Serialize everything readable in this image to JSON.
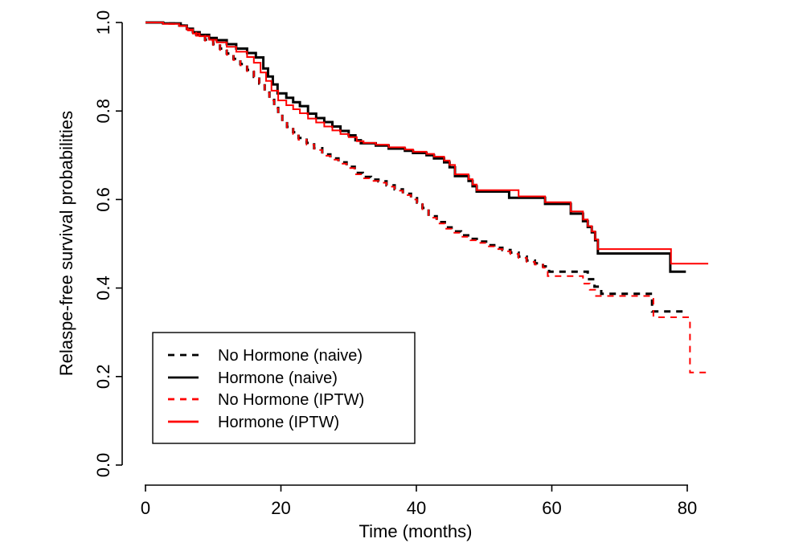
{
  "chart_data": {
    "type": "line",
    "subtype": "kaplan-meier-step",
    "title": "",
    "xlabel": "Time (months)",
    "ylabel": "Relaspe-free survival probabilities",
    "xlim": [
      0,
      84
    ],
    "ylim": [
      0.0,
      1.0
    ],
    "x_ticks": [
      "0",
      "20",
      "40",
      "60",
      "80"
    ],
    "x_tick_values": [
      0,
      20,
      40,
      60,
      80
    ],
    "y_ticks": [
      "0.0",
      "0.2",
      "0.4",
      "0.6",
      "0.8",
      "1.0"
    ],
    "y_tick_values": [
      0.0,
      0.2,
      0.4,
      0.6,
      0.8,
      1.0
    ],
    "grid": false,
    "legend_position": "bottom-left",
    "colors": {
      "naive": "#000000",
      "iptw": "#ff0000"
    },
    "series": [
      {
        "name": "No Hormone (naive)",
        "color": "#000000",
        "line_style": "dashed",
        "line_width": 3,
        "end": 79.4,
        "points": [
          [
            0,
            1.0
          ],
          [
            2.6,
            0.998
          ],
          [
            5.0,
            0.993
          ],
          [
            6.3,
            0.984
          ],
          [
            7.5,
            0.972
          ],
          [
            8.8,
            0.961
          ],
          [
            10.0,
            0.951
          ],
          [
            11.0,
            0.941
          ],
          [
            12.0,
            0.93
          ],
          [
            13.0,
            0.918
          ],
          [
            14.0,
            0.906
          ],
          [
            15.0,
            0.893
          ],
          [
            16.0,
            0.877
          ],
          [
            16.8,
            0.862
          ],
          [
            17.6,
            0.846
          ],
          [
            18.3,
            0.829
          ],
          [
            19.0,
            0.811
          ],
          [
            19.6,
            0.793
          ],
          [
            20.2,
            0.777
          ],
          [
            20.9,
            0.764
          ],
          [
            21.8,
            0.752
          ],
          [
            22.6,
            0.739
          ],
          [
            23.8,
            0.728
          ],
          [
            24.9,
            0.716
          ],
          [
            26.1,
            0.702
          ],
          [
            27.3,
            0.693
          ],
          [
            28.5,
            0.684
          ],
          [
            29.7,
            0.674
          ],
          [
            30.9,
            0.66
          ],
          [
            32.1,
            0.651
          ],
          [
            33.3,
            0.645
          ],
          [
            34.4,
            0.641
          ],
          [
            35.6,
            0.632
          ],
          [
            36.8,
            0.623
          ],
          [
            38.0,
            0.613
          ],
          [
            39.2,
            0.603
          ],
          [
            40.1,
            0.593
          ],
          [
            40.9,
            0.581
          ],
          [
            41.8,
            0.562
          ],
          [
            43.0,
            0.549
          ],
          [
            44.2,
            0.537
          ],
          [
            45.2,
            0.528
          ],
          [
            46.6,
            0.519
          ],
          [
            48.0,
            0.511
          ],
          [
            49.2,
            0.505
          ],
          [
            50.3,
            0.497
          ],
          [
            51.5,
            0.491
          ],
          [
            52.7,
            0.486
          ],
          [
            53.9,
            0.48
          ],
          [
            55.1,
            0.471
          ],
          [
            56.3,
            0.462
          ],
          [
            57.5,
            0.456
          ],
          [
            58.7,
            0.449
          ],
          [
            59.6,
            0.437
          ],
          [
            65.3,
            0.42
          ],
          [
            66.3,
            0.403
          ],
          [
            67.3,
            0.387
          ],
          [
            74.8,
            0.347
          ]
        ]
      },
      {
        "name": "Hormone (naive)",
        "color": "#000000",
        "line_style": "solid",
        "line_width": 3,
        "end": 79.8,
        "points": [
          [
            0,
            1.0
          ],
          [
            2.6,
            0.998
          ],
          [
            5.2,
            0.993
          ],
          [
            6.1,
            0.986
          ],
          [
            7.0,
            0.978
          ],
          [
            8.0,
            0.972
          ],
          [
            9.4,
            0.965
          ],
          [
            10.5,
            0.96
          ],
          [
            12.0,
            0.951
          ],
          [
            13.4,
            0.941
          ],
          [
            15.0,
            0.931
          ],
          [
            16.3,
            0.921
          ],
          [
            17.4,
            0.896
          ],
          [
            18.1,
            0.878
          ],
          [
            18.8,
            0.86
          ],
          [
            19.5,
            0.84
          ],
          [
            20.8,
            0.83
          ],
          [
            21.8,
            0.82
          ],
          [
            22.8,
            0.811
          ],
          [
            24.0,
            0.794
          ],
          [
            25.2,
            0.784
          ],
          [
            26.4,
            0.775
          ],
          [
            27.6,
            0.765
          ],
          [
            28.8,
            0.755
          ],
          [
            30.0,
            0.745
          ],
          [
            31.0,
            0.734
          ],
          [
            31.8,
            0.727
          ],
          [
            34.0,
            0.722
          ],
          [
            35.9,
            0.715
          ],
          [
            38.3,
            0.71
          ],
          [
            39.5,
            0.705
          ],
          [
            41.5,
            0.7
          ],
          [
            42.6,
            0.693
          ],
          [
            44.1,
            0.684
          ],
          [
            44.9,
            0.673
          ],
          [
            45.7,
            0.653
          ],
          [
            47.7,
            0.642
          ],
          [
            48.3,
            0.63
          ],
          [
            48.9,
            0.618
          ],
          [
            53.7,
            0.604
          ],
          [
            59.0,
            0.59
          ],
          [
            62.8,
            0.568
          ],
          [
            64.6,
            0.551
          ],
          [
            65.3,
            0.538
          ],
          [
            65.9,
            0.526
          ],
          [
            66.4,
            0.508
          ],
          [
            66.8,
            0.478
          ],
          [
            77.5,
            0.437
          ]
        ]
      },
      {
        "name": "No Hormone (IPTW)",
        "color": "#ff0000",
        "line_style": "dashed",
        "line_width": 2,
        "end": 83.2,
        "points": [
          [
            0,
            1.0
          ],
          [
            2.6,
            0.997
          ],
          [
            5.0,
            0.992
          ],
          [
            6.3,
            0.982
          ],
          [
            7.5,
            0.97
          ],
          [
            8.8,
            0.959
          ],
          [
            10.0,
            0.949
          ],
          [
            11.0,
            0.938
          ],
          [
            12.0,
            0.927
          ],
          [
            13.0,
            0.915
          ],
          [
            14.0,
            0.903
          ],
          [
            15.0,
            0.89
          ],
          [
            16.0,
            0.873
          ],
          [
            16.8,
            0.858
          ],
          [
            17.6,
            0.841
          ],
          [
            18.3,
            0.824
          ],
          [
            19.0,
            0.806
          ],
          [
            19.6,
            0.789
          ],
          [
            20.2,
            0.773
          ],
          [
            20.9,
            0.76
          ],
          [
            21.8,
            0.748
          ],
          [
            22.6,
            0.735
          ],
          [
            23.8,
            0.724
          ],
          [
            24.9,
            0.712
          ],
          [
            26.1,
            0.699
          ],
          [
            27.3,
            0.69
          ],
          [
            28.5,
            0.681
          ],
          [
            29.7,
            0.671
          ],
          [
            30.9,
            0.657
          ],
          [
            32.1,
            0.648
          ],
          [
            33.3,
            0.642
          ],
          [
            34.4,
            0.638
          ],
          [
            35.6,
            0.629
          ],
          [
            36.8,
            0.62
          ],
          [
            38.0,
            0.61
          ],
          [
            39.2,
            0.6
          ],
          [
            40.1,
            0.59
          ],
          [
            40.9,
            0.578
          ],
          [
            41.8,
            0.559
          ],
          [
            43.0,
            0.546
          ],
          [
            44.2,
            0.534
          ],
          [
            45.2,
            0.525
          ],
          [
            46.6,
            0.516
          ],
          [
            48.0,
            0.508
          ],
          [
            49.2,
            0.502
          ],
          [
            50.3,
            0.494
          ],
          [
            51.5,
            0.488
          ],
          [
            52.7,
            0.483
          ],
          [
            53.9,
            0.477
          ],
          [
            55.1,
            0.468
          ],
          [
            56.3,
            0.459
          ],
          [
            57.5,
            0.453
          ],
          [
            58.7,
            0.446
          ],
          [
            59.4,
            0.427
          ],
          [
            64.6,
            0.41
          ],
          [
            65.6,
            0.396
          ],
          [
            66.4,
            0.382
          ],
          [
            75.0,
            0.334
          ],
          [
            80.4,
            0.209
          ]
        ]
      },
      {
        "name": "Hormone (IPTW)",
        "color": "#ff0000",
        "line_style": "solid",
        "line_width": 2,
        "end": 83.1,
        "points": [
          [
            0,
            1.0
          ],
          [
            2.6,
            0.997
          ],
          [
            5.0,
            0.992
          ],
          [
            6.1,
            0.984
          ],
          [
            7.0,
            0.975
          ],
          [
            8.0,
            0.969
          ],
          [
            9.4,
            0.961
          ],
          [
            10.5,
            0.955
          ],
          [
            12.0,
            0.945
          ],
          [
            13.4,
            0.934
          ],
          [
            15.0,
            0.922
          ],
          [
            16.0,
            0.909
          ],
          [
            17.0,
            0.887
          ],
          [
            17.8,
            0.868
          ],
          [
            18.6,
            0.846
          ],
          [
            19.6,
            0.824
          ],
          [
            20.8,
            0.813
          ],
          [
            21.8,
            0.804
          ],
          [
            22.8,
            0.795
          ],
          [
            24.0,
            0.783
          ],
          [
            25.2,
            0.774
          ],
          [
            26.4,
            0.765
          ],
          [
            27.6,
            0.756
          ],
          [
            28.8,
            0.748
          ],
          [
            30.0,
            0.741
          ],
          [
            31.2,
            0.732
          ],
          [
            32.2,
            0.728
          ],
          [
            34.0,
            0.724
          ],
          [
            35.9,
            0.718
          ],
          [
            38.3,
            0.713
          ],
          [
            39.5,
            0.708
          ],
          [
            41.5,
            0.703
          ],
          [
            42.6,
            0.697
          ],
          [
            44.1,
            0.688
          ],
          [
            44.9,
            0.678
          ],
          [
            45.7,
            0.657
          ],
          [
            47.7,
            0.646
          ],
          [
            48.3,
            0.634
          ],
          [
            48.9,
            0.621
          ],
          [
            55.1,
            0.607
          ],
          [
            59.0,
            0.594
          ],
          [
            62.8,
            0.573
          ],
          [
            64.6,
            0.555
          ],
          [
            65.3,
            0.54
          ],
          [
            65.9,
            0.528
          ],
          [
            66.4,
            0.51
          ],
          [
            66.8,
            0.488
          ],
          [
            77.6,
            0.455
          ]
        ]
      }
    ]
  },
  "legend": {
    "entries": [
      {
        "label": "No Hormone (naive)",
        "color": "#000000",
        "style": "dashed"
      },
      {
        "label": "Hormone (naive)",
        "color": "#000000",
        "style": "solid"
      },
      {
        "label": "No Hormone (IPTW)",
        "color": "#ff0000",
        "style": "dashed"
      },
      {
        "label": "Hormone (IPTW)",
        "color": "#ff0000",
        "style": "solid"
      }
    ]
  }
}
